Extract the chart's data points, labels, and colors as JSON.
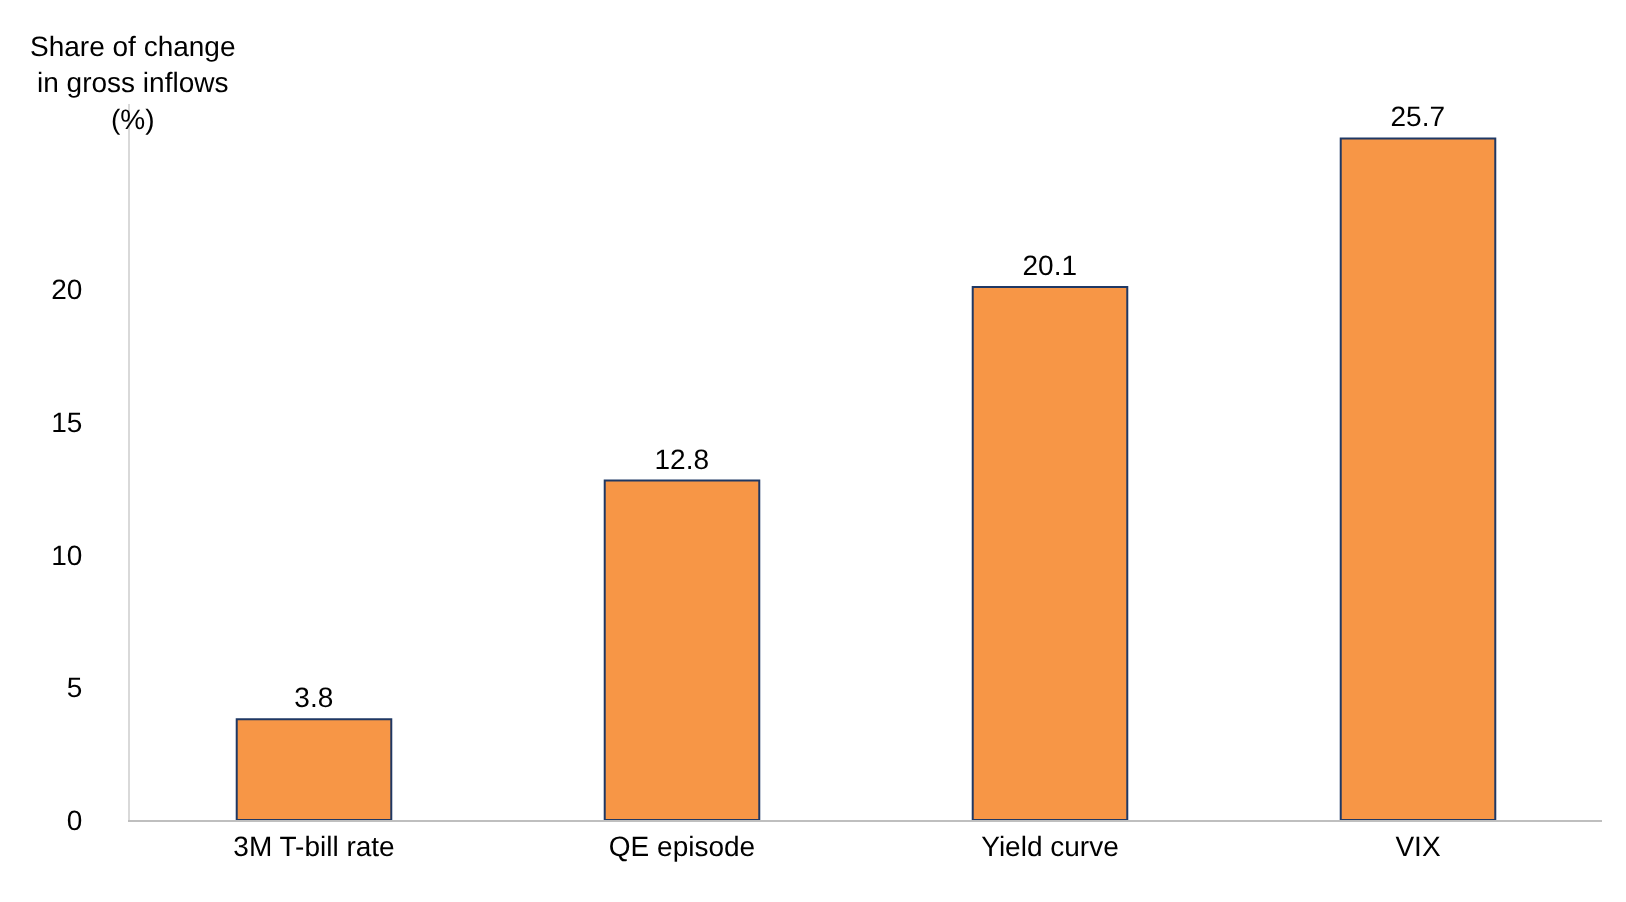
{
  "chart_data": {
    "type": "bar",
    "ylabel": "Share of change\nin gross inflows\n(%)",
    "categories": [
      "3M T-bill rate",
      "QE episode",
      "Yield curve",
      "VIX"
    ],
    "values": [
      3.8,
      12.8,
      20.1,
      25.7
    ],
    "color": "#f79646",
    "ylim": [
      0,
      27
    ],
    "yticks": [
      0,
      5,
      10,
      15,
      20
    ],
    "data_labels": true
  }
}
